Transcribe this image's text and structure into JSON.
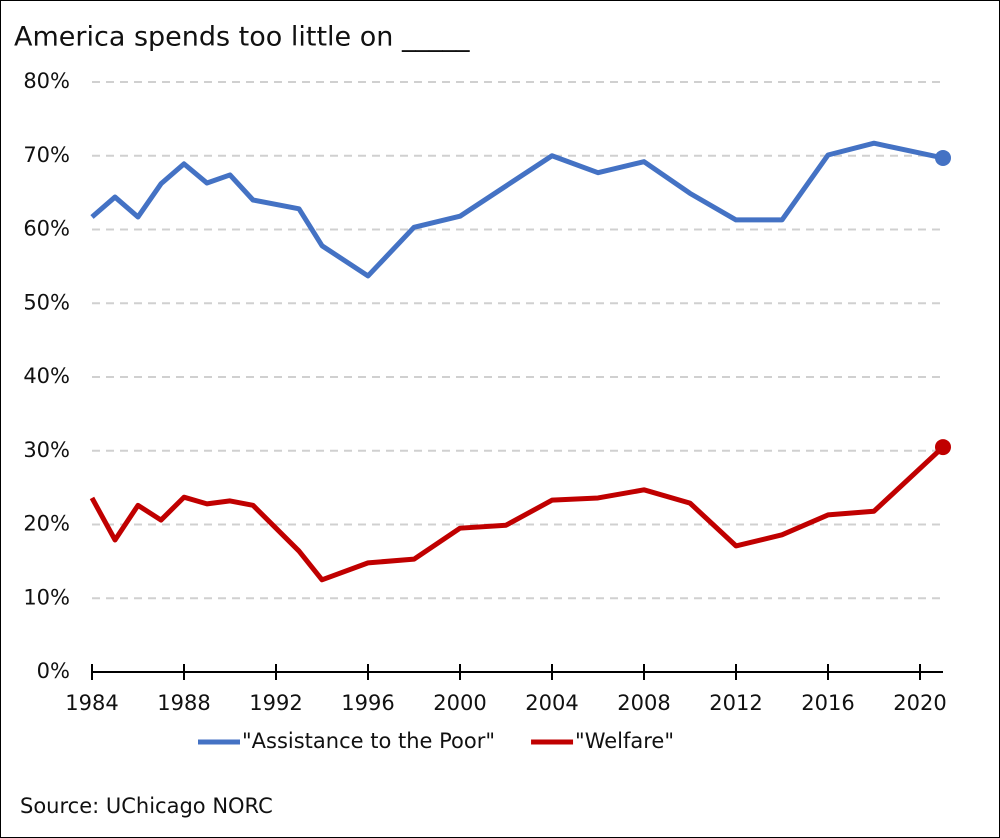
{
  "chart_data": {
    "type": "line",
    "title": "America spends too little on _____",
    "source": "Source: UChicago NORC",
    "x": [
      1984,
      1985,
      1986,
      1987,
      1988,
      1989,
      1990,
      1991,
      1993,
      1994,
      1996,
      1998,
      2000,
      2002,
      2004,
      2006,
      2008,
      2010,
      2012,
      2014,
      2016,
      2018,
      2021
    ],
    "series": [
      {
        "name": "\"Assistance to the Poor\"",
        "color": "#4472c4",
        "values": [
          61.7,
          64.4,
          61.7,
          66.2,
          68.9,
          66.3,
          67.4,
          64.0,
          62.8,
          57.8,
          53.7,
          60.3,
          61.8,
          65.9,
          70.0,
          67.7,
          69.2,
          64.9,
          61.3,
          61.3,
          70.1,
          71.7,
          69.7
        ]
      },
      {
        "name": "\"Welfare\"",
        "color": "#c00000",
        "values": [
          23.6,
          17.9,
          22.6,
          20.6,
          23.7,
          22.8,
          23.2,
          22.6,
          16.4,
          12.5,
          14.8,
          15.3,
          19.5,
          19.9,
          23.3,
          23.6,
          24.7,
          22.9,
          17.1,
          18.6,
          21.3,
          21.8,
          30.5
        ]
      }
    ],
    "xlim": [
      1984,
      2021
    ],
    "xticks": [
      1984,
      1988,
      1992,
      1996,
      2000,
      2004,
      2008,
      2012,
      2016,
      2020
    ],
    "ylim": [
      0,
      80
    ],
    "yticks": [
      {
        "value": 0,
        "label": "0%"
      },
      {
        "value": 10,
        "label": "10%"
      },
      {
        "value": 20,
        "label": "20%"
      },
      {
        "value": 30,
        "label": "30%"
      },
      {
        "value": 40,
        "label": "40%"
      },
      {
        "value": 50,
        "label": "50%"
      },
      {
        "value": 60,
        "label": "60%"
      },
      {
        "value": 70,
        "label": "70%"
      },
      {
        "value": 80,
        "label": "80%"
      }
    ],
    "grid": true,
    "legend": "bottom",
    "end_markers": true
  }
}
